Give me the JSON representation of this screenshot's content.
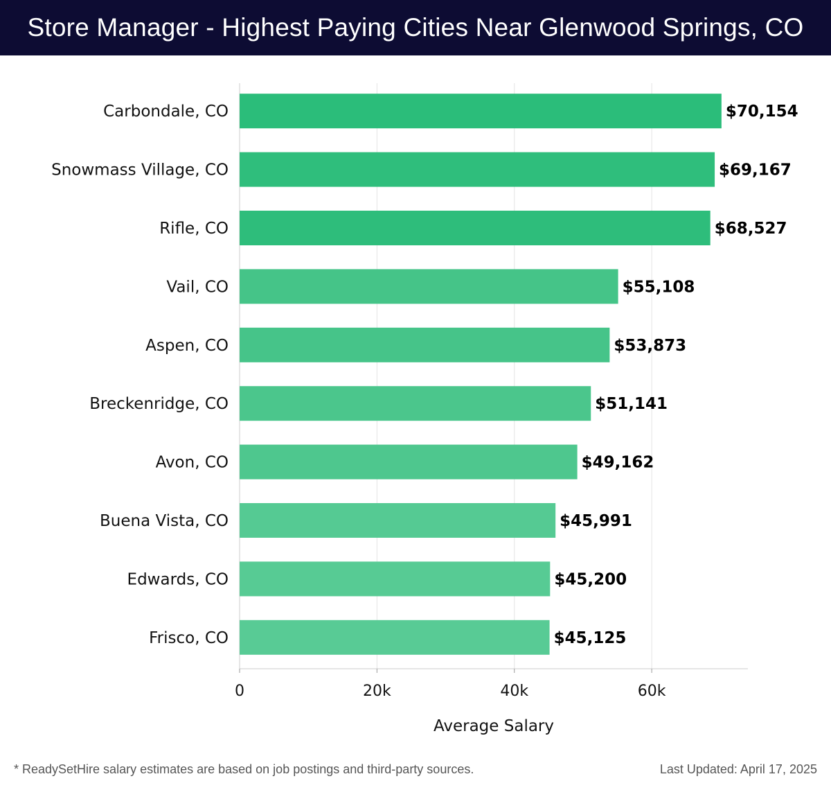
{
  "header": {
    "title": "Store Manager - Highest Paying Cities Near Glenwood Springs, CO"
  },
  "chart_data": {
    "type": "bar",
    "orientation": "horizontal",
    "categories": [
      "Carbondale, CO",
      "Snowmass Village, CO",
      "Rifle, CO",
      "Vail, CO",
      "Aspen, CO",
      "Breckenridge, CO",
      "Avon, CO",
      "Buena Vista, CO",
      "Edwards, CO",
      "Frisco, CO"
    ],
    "values": [
      70154,
      69167,
      68527,
      55108,
      53873,
      51141,
      49162,
      45991,
      45200,
      45125
    ],
    "value_labels": [
      "$70,154",
      "$69,167",
      "$68,527",
      "$55,108",
      "$53,873",
      "$51,141",
      "$49,162",
      "$45,991",
      "$45,200",
      "$45,125"
    ],
    "xlabel": "Average Salary",
    "xlim": [
      0,
      74000
    ],
    "xticks": [
      0,
      20000,
      40000,
      60000
    ],
    "xtick_labels": [
      "0",
      "20k",
      "40k",
      "60k"
    ],
    "grid": true,
    "colors": [
      "#2bbd7a",
      "#2fbe7c",
      "#2ebd7b",
      "#45c488",
      "#46c489",
      "#4bc68c",
      "#4ec78e",
      "#55ca93",
      "#57cb94",
      "#58cb95"
    ]
  },
  "footer": {
    "note": "* ReadySetHire salary estimates are based on job postings and third-party sources.",
    "updated": "Last Updated: April 17, 2025"
  }
}
